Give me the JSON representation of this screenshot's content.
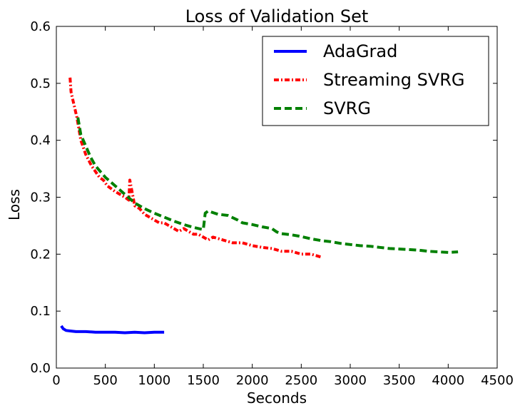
{
  "chart_data": {
    "type": "line",
    "title": "Loss of Validation Set",
    "xlabel": "Seconds",
    "ylabel": "Loss",
    "xlim": [
      0,
      4500
    ],
    "ylim": [
      0.0,
      0.6
    ],
    "xticks": [
      0,
      500,
      1000,
      1500,
      2000,
      2500,
      3000,
      3500,
      4000,
      4500
    ],
    "yticks": [
      0.0,
      0.1,
      0.2,
      0.3,
      0.4,
      0.5,
      0.6
    ],
    "xtick_labels": [
      "0",
      "500",
      "1000",
      "1500",
      "2000",
      "2500",
      "3000",
      "3500",
      "4000",
      "4500"
    ],
    "ytick_labels": [
      "0.0",
      "0.1",
      "0.2",
      "0.3",
      "0.4",
      "0.5",
      "0.6"
    ],
    "legend_position": "top-right",
    "series": [
      {
        "name": "AdaGrad",
        "color": "#0000ff",
        "style": "solid",
        "x": [
          50,
          70,
          100,
          150,
          200,
          300,
          400,
          500,
          600,
          700,
          800,
          900,
          1000,
          1100
        ],
        "y": [
          0.074,
          0.069,
          0.066,
          0.065,
          0.064,
          0.064,
          0.063,
          0.063,
          0.063,
          0.062,
          0.063,
          0.062,
          0.063,
          0.063
        ]
      },
      {
        "name": "Streaming SVRG",
        "color": "#ff0000",
        "style": "dashdot",
        "x": [
          140,
          150,
          170,
          190,
          210,
          230,
          250,
          270,
          300,
          330,
          360,
          400,
          440,
          480,
          520,
          560,
          600,
          650,
          700,
          740,
          750,
          800,
          850,
          900,
          950,
          1000,
          1050,
          1100,
          1150,
          1200,
          1250,
          1300,
          1350,
          1400,
          1450,
          1500,
          1550,
          1600,
          1700,
          1800,
          1900,
          2000,
          2100,
          2200,
          2300,
          2400,
          2500,
          2600,
          2700
        ],
        "y": [
          0.51,
          0.485,
          0.47,
          0.455,
          0.44,
          0.42,
          0.4,
          0.39,
          0.375,
          0.365,
          0.355,
          0.345,
          0.335,
          0.33,
          0.32,
          0.315,
          0.31,
          0.305,
          0.3,
          0.295,
          0.33,
          0.285,
          0.28,
          0.27,
          0.265,
          0.26,
          0.255,
          0.255,
          0.25,
          0.245,
          0.24,
          0.245,
          0.24,
          0.235,
          0.235,
          0.23,
          0.225,
          0.23,
          0.225,
          0.22,
          0.22,
          0.215,
          0.212,
          0.21,
          0.205,
          0.205,
          0.2,
          0.2,
          0.195
        ]
      },
      {
        "name": "SVRG",
        "color": "#008000",
        "style": "dashed",
        "x": [
          220,
          250,
          300,
          350,
          400,
          500,
          600,
          700,
          800,
          900,
          1000,
          1100,
          1200,
          1300,
          1400,
          1500,
          1520,
          1550,
          1600,
          1650,
          1700,
          1750,
          1800,
          1850,
          1900,
          2000,
          2100,
          2200,
          2250,
          2300,
          2400,
          2500,
          2600,
          2700,
          2800,
          2900,
          3000,
          3100,
          3200,
          3300,
          3400,
          3500,
          3600,
          3700,
          3800,
          3900,
          4000,
          4100
        ],
        "y": [
          0.44,
          0.41,
          0.39,
          0.37,
          0.355,
          0.335,
          0.32,
          0.305,
          0.29,
          0.28,
          0.272,
          0.265,
          0.258,
          0.252,
          0.247,
          0.243,
          0.272,
          0.276,
          0.273,
          0.27,
          0.269,
          0.268,
          0.264,
          0.26,
          0.255,
          0.252,
          0.248,
          0.245,
          0.239,
          0.236,
          0.234,
          0.231,
          0.227,
          0.224,
          0.222,
          0.219,
          0.217,
          0.215,
          0.214,
          0.212,
          0.21,
          0.209,
          0.208,
          0.207,
          0.205,
          0.204,
          0.203,
          0.204
        ]
      }
    ]
  }
}
